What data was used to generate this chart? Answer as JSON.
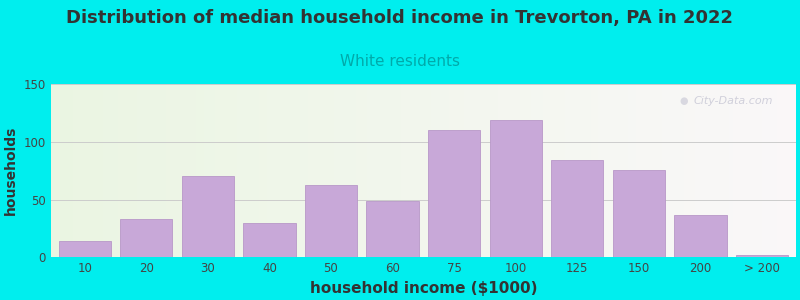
{
  "title": "Distribution of median household income in Trevorton, PA in 2022",
  "subtitle": "White residents",
  "xlabel": "household income ($1000)",
  "ylabel": "households",
  "title_fontsize": 13,
  "subtitle_fontsize": 11,
  "subtitle_color": "#00AAAA",
  "xlabel_fontsize": 11,
  "ylabel_fontsize": 10,
  "background_color": "#00EEEE",
  "bar_color": "#C8A8D8",
  "bar_edge_color": "#B898C8",
  "categories": [
    "10",
    "20",
    "30",
    "40",
    "50",
    "60",
    "75",
    "100",
    "125",
    "150",
    "200",
    "> 200"
  ],
  "values": [
    14,
    33,
    70,
    30,
    63,
    49,
    110,
    119,
    84,
    76,
    37,
    2
  ],
  "ylim": [
    0,
    150
  ],
  "yticks": [
    0,
    50,
    100,
    150
  ],
  "watermark": "City-Data.com"
}
